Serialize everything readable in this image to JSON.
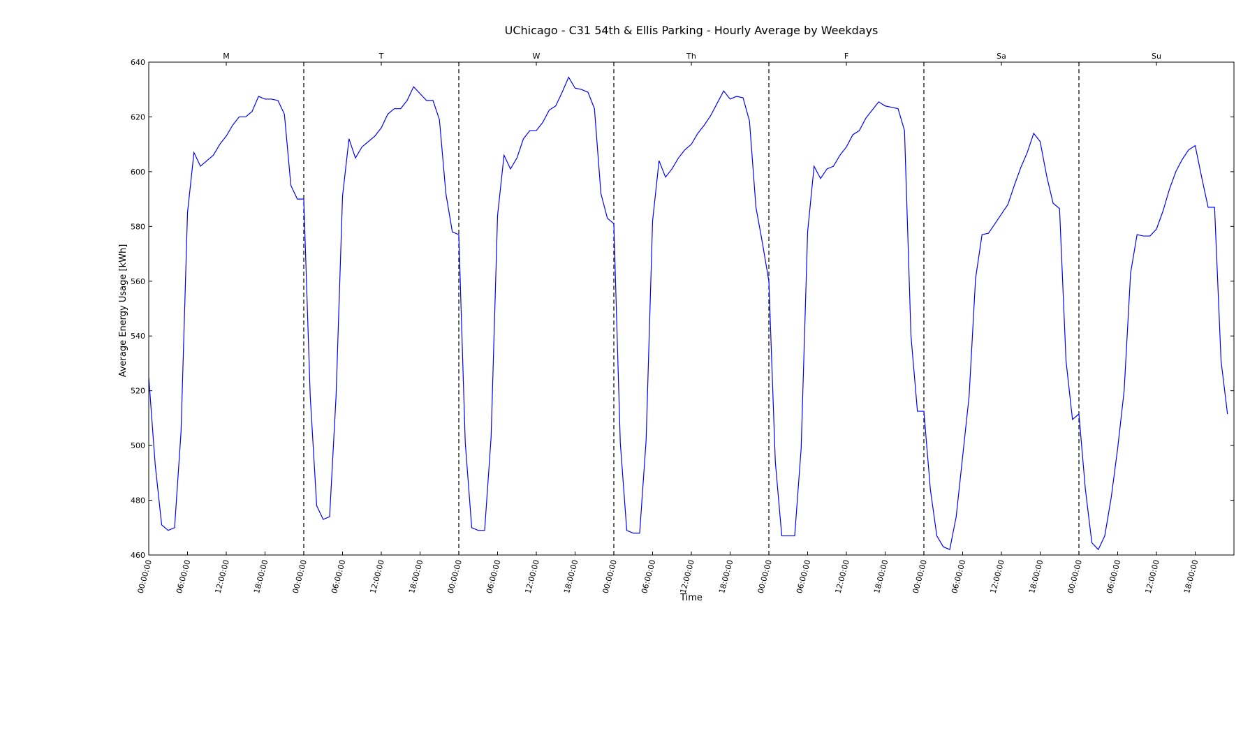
{
  "chart_data": {
    "type": "line",
    "title": "UChicago - C31 54th & Ellis Parking - Hourly Average by Weekdays",
    "xlabel": "Time",
    "ylabel": "Average Energy Usage [kWh]",
    "ylim": [
      460,
      640
    ],
    "yticks": [
      460,
      480,
      500,
      520,
      540,
      560,
      580,
      600,
      620,
      640
    ],
    "day_labels": [
      "M",
      "T",
      "W",
      "Th",
      "F",
      "Sa",
      "Su"
    ],
    "xtick_labels": [
      "00:00:00",
      "06:00:00",
      "12:00:00",
      "18:00:00"
    ],
    "hours_per_day": 24,
    "grid": false,
    "colors": {
      "line": "#0000ff",
      "separator": "#000000"
    },
    "series": [
      {
        "values": [
          525,
          493,
          471,
          469,
          470,
          505,
          585,
          607,
          602,
          604,
          606,
          610,
          613,
          617,
          620,
          620,
          622,
          627.5,
          626.5,
          626.5,
          626,
          621,
          595,
          590,
          590,
          518,
          478,
          473,
          474,
          518,
          591,
          612,
          605,
          609,
          611,
          613,
          616,
          621,
          623,
          623,
          626,
          631,
          628.5,
          626,
          626,
          619,
          592,
          578,
          577,
          501,
          470,
          469,
          469,
          503,
          584,
          606,
          601,
          605,
          612,
          615,
          615,
          618,
          622.5,
          624,
          629,
          634.5,
          630.5,
          630,
          629,
          623,
          592,
          583,
          581,
          501,
          469,
          468,
          468,
          502,
          582,
          604,
          598,
          601,
          605,
          608,
          610,
          614,
          617,
          620.5,
          625,
          629.5,
          626.5,
          627.5,
          627,
          618.5,
          587,
          574,
          560,
          494,
          467,
          467,
          467,
          499,
          578,
          602,
          597.5,
          601,
          602,
          606,
          609,
          613.5,
          615,
          619.5,
          622.5,
          625.5,
          624,
          623.5,
          623,
          615,
          540,
          512.5,
          512.5,
          484,
          467,
          463,
          462,
          474,
          496,
          518,
          561,
          577,
          577.5,
          581,
          584.5,
          588,
          595,
          601.5,
          607,
          614,
          611,
          598.5,
          588.5,
          586.5,
          531,
          509.5,
          511.5,
          484,
          464.5,
          462,
          467,
          481,
          499,
          520,
          563,
          577,
          576.5,
          576.5,
          579,
          585.5,
          593.5,
          600,
          604.5,
          608,
          609.5,
          598,
          587,
          587,
          531,
          511.5
        ]
      }
    ]
  }
}
